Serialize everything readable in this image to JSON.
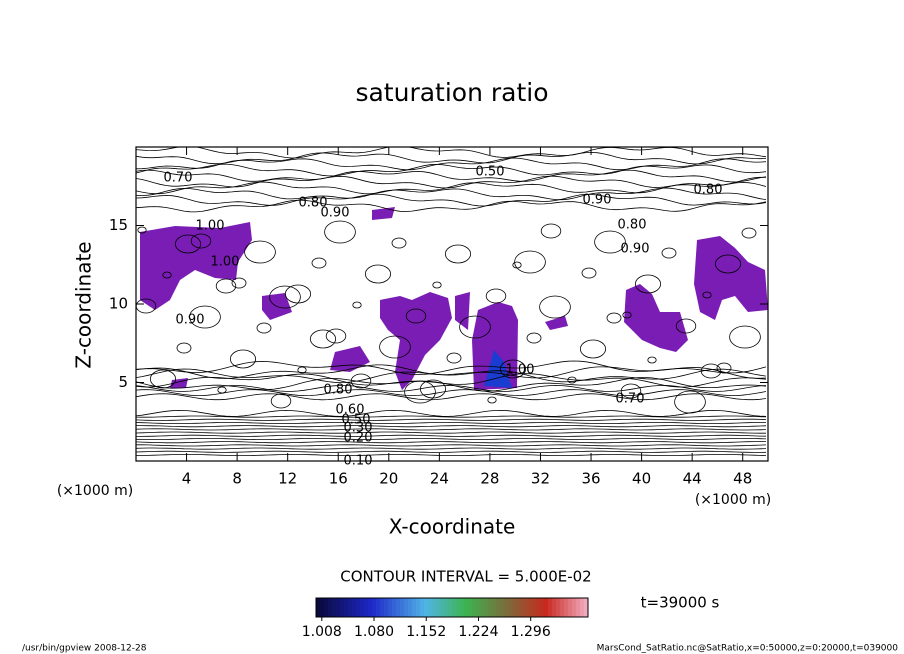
{
  "chart_data": {
    "type": "contour",
    "title": "saturation ratio",
    "xlabel": "X-coordinate",
    "ylabel": "Z-coordinate",
    "x_unit": "(×1000 m)",
    "y_unit": "(×1000 m)",
    "xlim": [
      0,
      50
    ],
    "ylim": [
      0,
      20
    ],
    "xticks": [
      4,
      8,
      12,
      16,
      20,
      24,
      28,
      32,
      36,
      40,
      44,
      48
    ],
    "yticks": [
      5,
      10,
      15
    ],
    "contour_labels": [
      {
        "value": 0.7,
        "label": "0.70"
      },
      {
        "value": 0.5,
        "label": "0.50"
      },
      {
        "value": 0.8,
        "label": "0.80"
      },
      {
        "value": 0.9,
        "label": "0.90"
      },
      {
        "value": 1.0,
        "label": "1.00"
      },
      {
        "value": 0.8,
        "label": "0.80"
      },
      {
        "value": 0.9,
        "label": "0.90"
      },
      {
        "value": 0.8,
        "label": "0.80"
      },
      {
        "value": 0.9,
        "label": "0.90"
      },
      {
        "value": 1.0,
        "label": "1.00"
      },
      {
        "value": 0.9,
        "label": "0.90"
      },
      {
        "value": 0.8,
        "label": "0.80"
      },
      {
        "value": 0.6,
        "label": "0.60"
      },
      {
        "value": 0.5,
        "label": "0.50"
      },
      {
        "value": 0.3,
        "label": "0.30"
      },
      {
        "value": 0.2,
        "label": "0.20"
      },
      {
        "value": 0.1,
        "label": "0.10"
      },
      {
        "value": 1.0,
        "label": "1.00"
      },
      {
        "value": 0.7,
        "label": "0.70"
      }
    ],
    "contour_interval": "CONTOUR INTERVAL = 5.000E-02",
    "time_label": "t=39000 s",
    "colorbar_lim": [
      1.0,
      1.375
    ],
    "colorbar_ticks": [
      {
        "value": 1.008,
        "label": "1.008"
      },
      {
        "value": 1.08,
        "label": "1.080"
      },
      {
        "value": 1.152,
        "label": "1.152"
      },
      {
        "value": 1.224,
        "label": "1.224"
      },
      {
        "value": 1.296,
        "label": "1.296"
      }
    ],
    "footer_left": "/usr/bin/gpview  2008-12-28",
    "footer_right": "MarsCond_SatRatio.nc@SatRatio,x=0:50000,z=0:20000,t=039000"
  }
}
